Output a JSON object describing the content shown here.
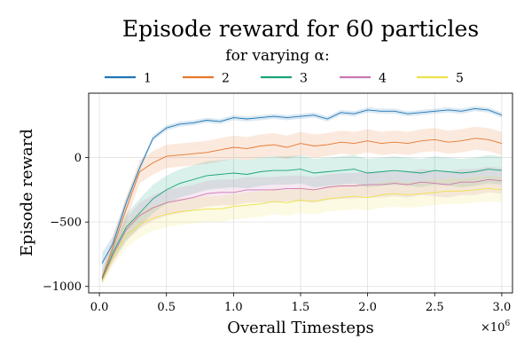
{
  "chart_data": {
    "type": "line",
    "title": "Episode reward for 60 particles",
    "subtitle": "for varying α:",
    "xlabel": "Overall Timesteps",
    "ylabel": "Episode reward",
    "x_multiplier_label": "×10",
    "x_multiplier_exp": "6",
    "xlim": [
      -0.08,
      3.08
    ],
    "ylim": [
      -1050,
      500
    ],
    "xticks": [
      0.0,
      0.5,
      1.0,
      1.5,
      2.0,
      2.5,
      3.0
    ],
    "xtick_labels": [
      "0.0",
      "0.5",
      "1.0",
      "1.5",
      "2.0",
      "2.5",
      "3.0"
    ],
    "yticks": [
      -1000,
      -500,
      0
    ],
    "ytick_labels": [
      "−1000",
      "−500",
      "0"
    ],
    "grid": true,
    "legend_position": "top",
    "x": [
      0.02,
      0.1,
      0.2,
      0.3,
      0.4,
      0.5,
      0.6,
      0.7,
      0.8,
      0.9,
      1.0,
      1.1,
      1.2,
      1.3,
      1.4,
      1.5,
      1.6,
      1.7,
      1.8,
      1.9,
      2.0,
      2.1,
      2.2,
      2.3,
      2.4,
      2.5,
      2.6,
      2.7,
      2.8,
      2.9,
      3.0
    ],
    "series": [
      {
        "name": "1",
        "color": "#1f77b4",
        "values": [
          -820,
          -670,
          -350,
          -80,
          150,
          230,
          260,
          270,
          290,
          280,
          310,
          300,
          310,
          320,
          310,
          320,
          330,
          300,
          350,
          340,
          370,
          360,
          360,
          340,
          350,
          360,
          370,
          360,
          380,
          370,
          330
        ],
        "band": [
          80,
          60,
          40,
          25,
          20,
          20,
          20,
          20,
          20,
          20,
          20,
          20,
          20,
          20,
          20,
          20,
          20,
          20,
          20,
          20,
          20,
          20,
          20,
          20,
          20,
          20,
          20,
          20,
          20,
          20,
          20
        ]
      },
      {
        "name": "2",
        "color": "#e5772c",
        "values": [
          -930,
          -700,
          -400,
          -110,
          -40,
          10,
          20,
          30,
          40,
          60,
          80,
          70,
          90,
          100,
          80,
          110,
          90,
          100,
          120,
          110,
          130,
          110,
          120,
          110,
          130,
          140,
          120,
          130,
          150,
          140,
          110
        ],
        "band": [
          40,
          80,
          90,
          90,
          90,
          90,
          90,
          90,
          90,
          90,
          90,
          90,
          90,
          90,
          90,
          90,
          90,
          90,
          90,
          90,
          90,
          90,
          90,
          90,
          90,
          90,
          90,
          90,
          90,
          90,
          90
        ]
      },
      {
        "name": "3",
        "color": "#1aa37a",
        "values": [
          -940,
          -740,
          -540,
          -430,
          -320,
          -250,
          -200,
          -170,
          -140,
          -130,
          -120,
          -130,
          -110,
          -100,
          -100,
          -90,
          -120,
          -110,
          -100,
          -90,
          -120,
          -110,
          -100,
          -110,
          -120,
          -100,
          -110,
          -120,
          -110,
          -90,
          -100
        ],
        "band": [
          30,
          60,
          100,
          110,
          110,
          110,
          110,
          110,
          110,
          110,
          110,
          110,
          110,
          110,
          110,
          110,
          110,
          110,
          110,
          110,
          110,
          110,
          110,
          110,
          110,
          110,
          110,
          110,
          110,
          110,
          110
        ]
      },
      {
        "name": "4",
        "color": "#cc78b4",
        "values": [
          -950,
          -760,
          -560,
          -450,
          -390,
          -350,
          -330,
          -310,
          -280,
          -270,
          -270,
          -250,
          -250,
          -250,
          -240,
          -240,
          -250,
          -230,
          -220,
          -220,
          -210,
          -210,
          -200,
          -210,
          -190,
          -200,
          -210,
          -190,
          -190,
          -170,
          -180
        ],
        "band": [
          30,
          60,
          90,
          100,
          100,
          100,
          100,
          100,
          100,
          100,
          100,
          100,
          100,
          100,
          100,
          100,
          100,
          100,
          100,
          100,
          100,
          100,
          100,
          100,
          100,
          100,
          100,
          100,
          100,
          100,
          100
        ]
      },
      {
        "name": "5",
        "color": "#ede24a",
        "values": [
          -960,
          -780,
          -600,
          -520,
          -470,
          -440,
          -420,
          -410,
          -400,
          -400,
          -380,
          -370,
          -360,
          -340,
          -350,
          -330,
          -340,
          -320,
          -310,
          -300,
          -310,
          -290,
          -280,
          -290,
          -280,
          -270,
          -260,
          -260,
          -250,
          -240,
          -250
        ],
        "band": [
          30,
          60,
          100,
          100,
          100,
          100,
          100,
          100,
          100,
          100,
          100,
          100,
          100,
          100,
          100,
          100,
          100,
          100,
          100,
          100,
          100,
          100,
          100,
          100,
          100,
          100,
          100,
          100,
          100,
          100,
          100
        ]
      }
    ]
  }
}
